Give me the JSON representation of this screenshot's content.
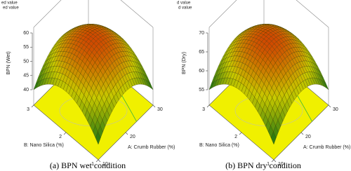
{
  "chart_data": [
    {
      "type": "surface",
      "title": "(a) BPN wet condition",
      "annotations": [
        "ed value",
        "ed value"
      ],
      "z_label": "BPN (Wet)",
      "x_label": "A: Crumb Rubber (%)",
      "y_label": "B: Nano Silica (%)",
      "zlim": [
        40,
        60
      ],
      "zticks": [
        40,
        45,
        50,
        55,
        60
      ],
      "xlim": [
        10,
        30
      ],
      "xticks": [
        10,
        20,
        30
      ],
      "ylim": [
        1,
        3
      ],
      "yticks": [
        1,
        2,
        3
      ]
    },
    {
      "type": "surface",
      "title": "(b) BPN dry condition",
      "annotations": [
        "d value",
        "d value"
      ],
      "z_label": "BPN (Dry)",
      "x_label": "A: Crumb Rubber (%)",
      "y_label": "B: Nano Silica (%)",
      "zlim": [
        55,
        70
      ],
      "zticks": [
        55,
        60,
        65,
        70
      ],
      "xlim": [
        10,
        30
      ],
      "xticks": [
        10,
        20,
        30
      ],
      "ylim": [
        1,
        3
      ],
      "yticks": [
        1,
        2,
        3
      ]
    }
  ]
}
